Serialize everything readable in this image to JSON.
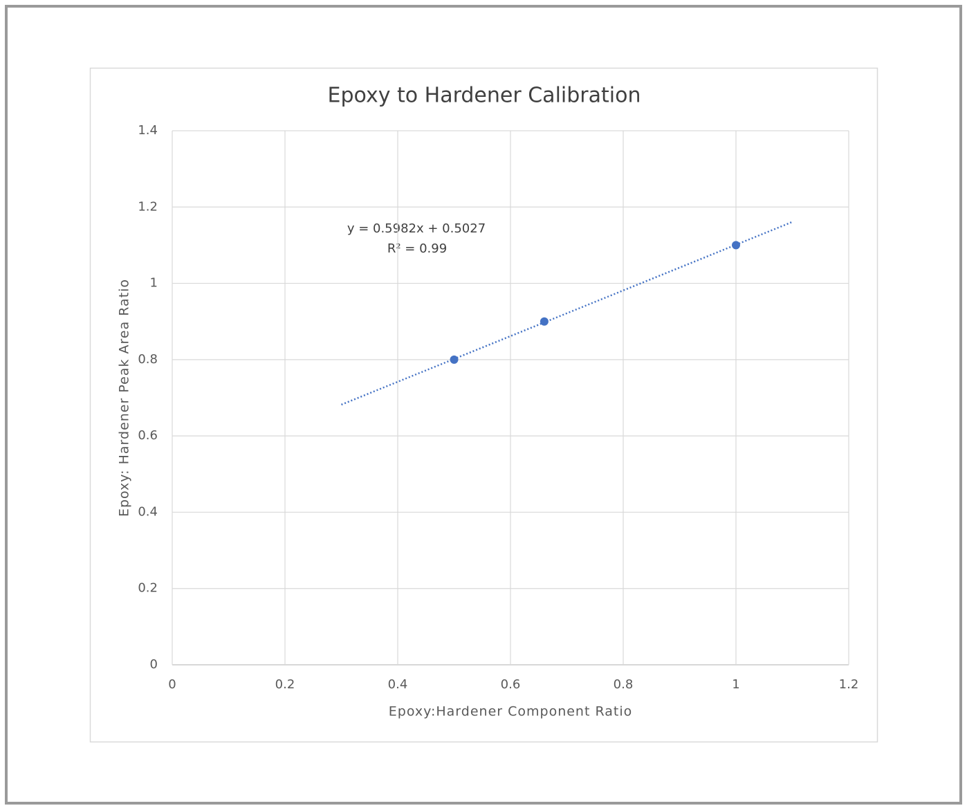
{
  "chart_data": {
    "type": "scatter",
    "title": "Epoxy to Hardener Calibration",
    "x_label": "Epoxy:Hardener Component Ratio",
    "y_label": "Epoxy: Hardener Peak Area Ratio",
    "x": [
      0.5,
      0.66,
      1.0
    ],
    "values": [
      0.8,
      0.9,
      1.1
    ],
    "color": "#4472c4",
    "trendline": {
      "x": [
        0.3,
        1.1
      ],
      "values": [
        0.682,
        1.161
      ]
    },
    "annotations": [
      "y = 0.5982x + 0.5027",
      "R² = 0.99"
    ],
    "xlim": [
      0,
      1.2
    ],
    "xticks": [
      0,
      0.2,
      0.4,
      0.6,
      0.8,
      1,
      1.2
    ],
    "ylim": [
      0,
      1.4
    ],
    "yticks": [
      0,
      0.2,
      0.4,
      0.6,
      0.8,
      1,
      1.2,
      1.4
    ],
    "grid": true
  }
}
